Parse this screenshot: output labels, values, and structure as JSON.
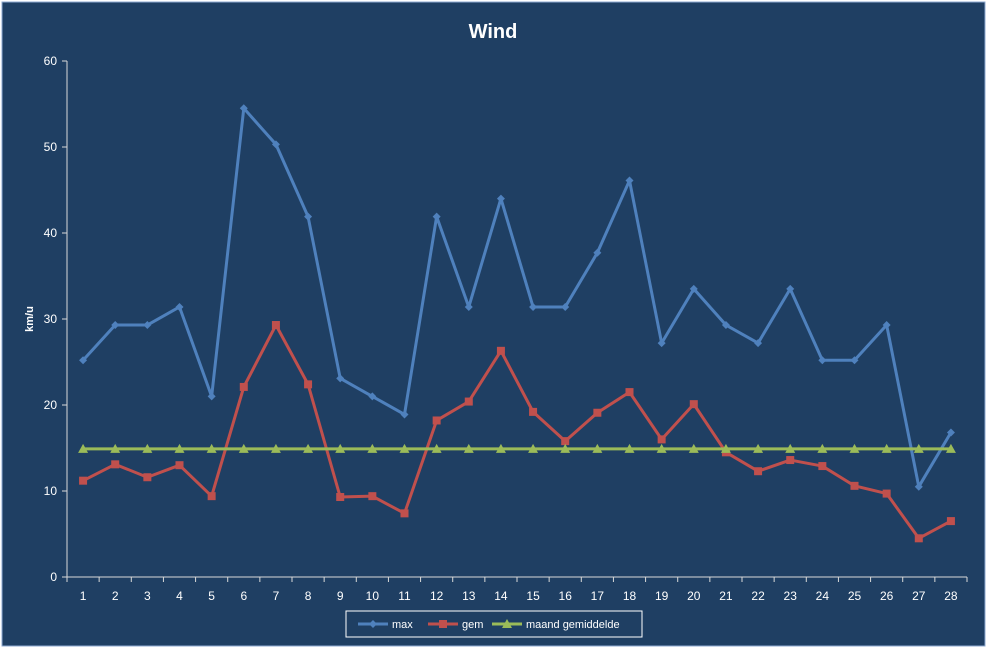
{
  "chart_data": {
    "type": "line",
    "title": "Wind",
    "xlabel": "",
    "ylabel": "km/u",
    "ylim": [
      0,
      60
    ],
    "yticks": [
      0,
      10,
      20,
      30,
      40,
      50,
      60
    ],
    "categories": [
      "1",
      "2",
      "3",
      "4",
      "5",
      "6",
      "7",
      "8",
      "9",
      "10",
      "11",
      "12",
      "13",
      "14",
      "15",
      "16",
      "17",
      "18",
      "19",
      "20",
      "21",
      "22",
      "23",
      "24",
      "25",
      "26",
      "27",
      "28"
    ],
    "grid": false,
    "legend_position": "bottom",
    "colors": {
      "background": "#1f3f63",
      "axis": "#d9d9d9",
      "text": "#ffffff",
      "legend_bg": "#ffffff",
      "legend_text": "#000000"
    },
    "series": [
      {
        "name": "max",
        "color": "#4f81bd",
        "marker": "diamond",
        "values": [
          25.2,
          29.3,
          29.3,
          31.4,
          21.0,
          54.5,
          50.3,
          41.9,
          23.1,
          21.0,
          18.9,
          41.9,
          31.4,
          44.0,
          31.4,
          31.4,
          37.7,
          46.1,
          27.2,
          33.5,
          29.3,
          27.2,
          33.5,
          25.2,
          25.2,
          29.3,
          10.5,
          16.8
        ]
      },
      {
        "name": "gem",
        "color": "#c0504d",
        "marker": "square",
        "values": [
          11.2,
          13.1,
          11.6,
          13.0,
          9.4,
          22.1,
          29.3,
          22.4,
          9.3,
          9.4,
          7.4,
          18.2,
          20.4,
          26.3,
          19.2,
          15.8,
          19.1,
          21.5,
          16.0,
          20.1,
          14.5,
          12.3,
          13.6,
          12.9,
          10.6,
          9.7,
          4.5,
          6.5
        ]
      },
      {
        "name": "maand gemiddelde",
        "color": "#9bbb59",
        "marker": "triangle",
        "values": [
          14.9,
          14.9,
          14.9,
          14.9,
          14.9,
          14.9,
          14.9,
          14.9,
          14.9,
          14.9,
          14.9,
          14.9,
          14.9,
          14.9,
          14.9,
          14.9,
          14.9,
          14.9,
          14.9,
          14.9,
          14.9,
          14.9,
          14.9,
          14.9,
          14.9,
          14.9,
          14.9,
          14.9
        ]
      }
    ]
  }
}
